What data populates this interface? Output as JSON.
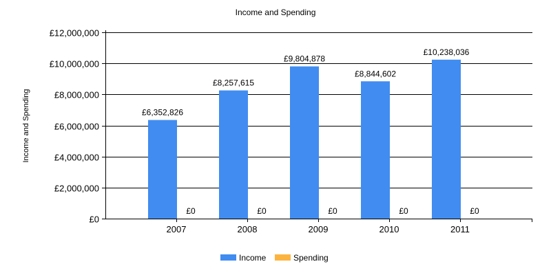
{
  "chart_data": {
    "type": "bar",
    "title": "Income and Spending",
    "xlabel": "",
    "ylabel": "Income and Spending",
    "categories": [
      "2007",
      "2008",
      "2009",
      "2010",
      "2011"
    ],
    "ylim": [
      0,
      12000000
    ],
    "yticks": [
      0,
      2000000,
      4000000,
      6000000,
      8000000,
      10000000,
      12000000
    ],
    "ytick_labels": [
      "£0",
      "£2,000,000",
      "£4,000,000",
      "£6,000,000",
      "£8,000,000",
      "£10,000,000",
      "£12,000,000"
    ],
    "grid": true,
    "legend_position": "bottom",
    "series": [
      {
        "name": "Income",
        "color": "#418CF0",
        "values": [
          6352826,
          8257615,
          9804878,
          8844602,
          10238036
        ],
        "labels": [
          "£6,352,826",
          "£8,257,615",
          "£9,804,878",
          "£8,844,602",
          "£10,238,036"
        ]
      },
      {
        "name": "Spending",
        "color": "#FCB441",
        "values": [
          0,
          0,
          0,
          0,
          0
        ],
        "labels": [
          "£0",
          "£0",
          "£0",
          "£0",
          "£0"
        ]
      }
    ]
  }
}
